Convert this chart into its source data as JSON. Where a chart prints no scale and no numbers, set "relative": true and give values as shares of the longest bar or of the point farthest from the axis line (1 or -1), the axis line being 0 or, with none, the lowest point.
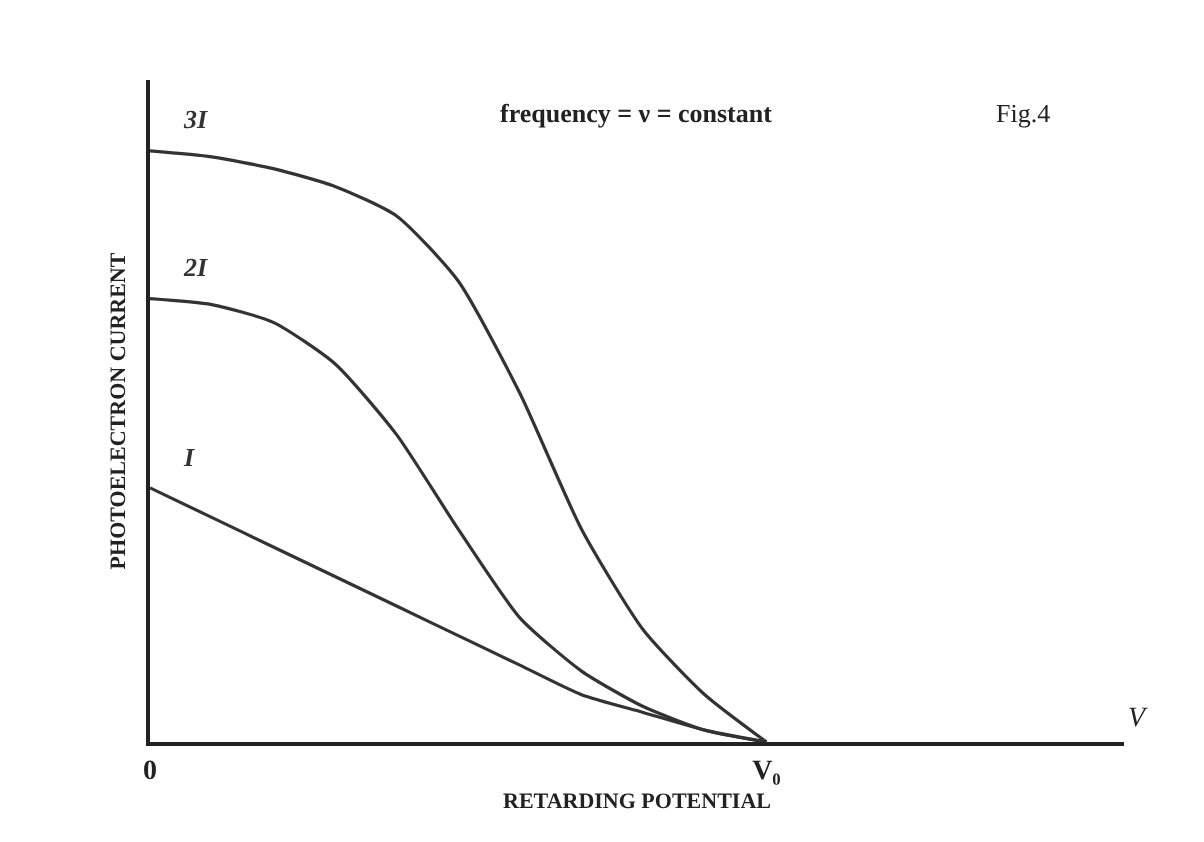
{
  "chart_data": {
    "type": "line",
    "relative": true,
    "title": "frequency = ν = constant",
    "xlabel": "RETARDING POTENTIAL",
    "ylabel": "PHOTOELECTRON CURRENT",
    "annotations": [
      "Fig.4",
      "V"
    ],
    "categories": [
      "0",
      null,
      null,
      null,
      null,
      null,
      null,
      null,
      null,
      null,
      "V₀",
      null,
      null,
      null,
      null,
      null
    ],
    "legend": false,
    "marker": "none",
    "line_style": "solid",
    "series": [
      {
        "name": "3I",
        "color": "#333333",
        "values": [
          1.0,
          0.99,
          0.97,
          0.94,
          0.89,
          0.78,
          0.59,
          0.36,
          0.19,
          0.08,
          0,
          null,
          null,
          null,
          null,
          null
        ]
      },
      {
        "name": "2I",
        "color": "#333333",
        "values": [
          0.75,
          0.74,
          0.71,
          0.64,
          0.52,
          0.36,
          0.21,
          0.12,
          0.06,
          0.02,
          0,
          null,
          null,
          null,
          null,
          null
        ]
      },
      {
        "name": "I",
        "color": "#333333",
        "values": [
          0.43,
          0.38,
          0.33,
          0.28,
          0.23,
          0.18,
          0.13,
          0.08,
          0.05,
          0.02,
          0,
          null,
          null,
          null,
          null,
          null
        ]
      }
    ]
  }
}
